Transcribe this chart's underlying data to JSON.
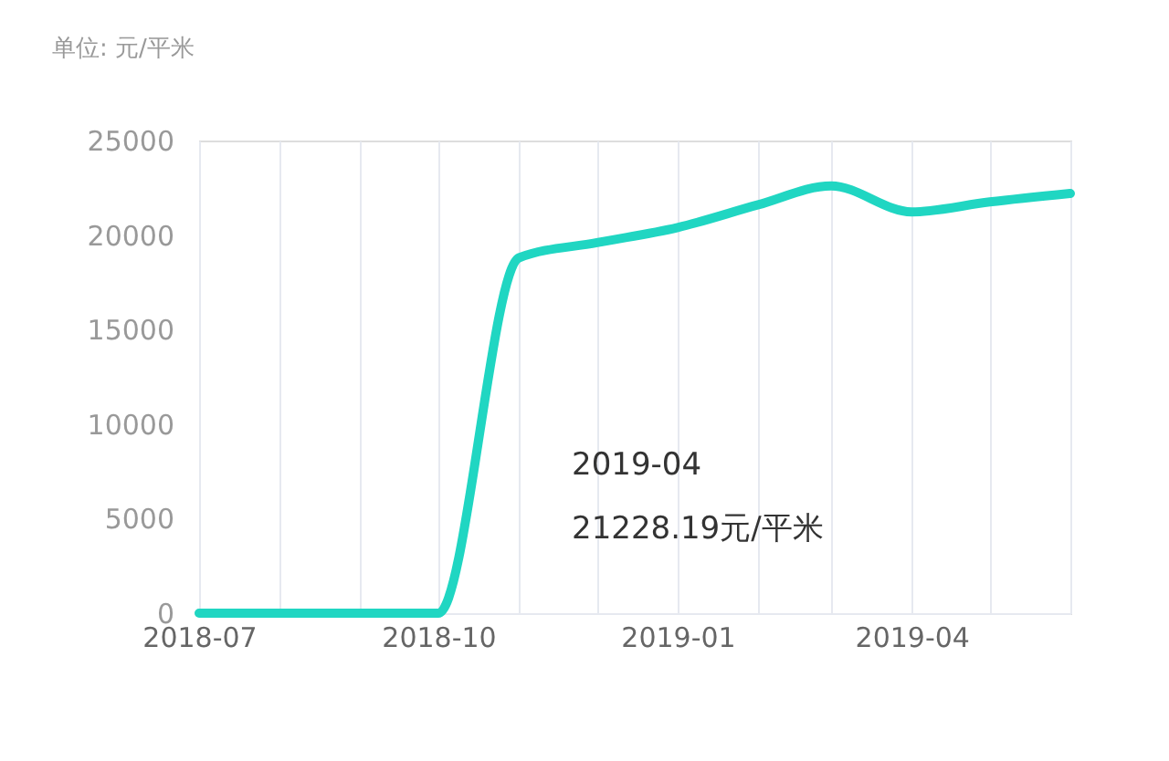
{
  "chart_data": {
    "type": "line",
    "ylabel": "单位: 元/平米",
    "x": [
      "2018-07",
      "2018-08",
      "2018-09",
      "2018-10",
      "2018-11",
      "2018-12",
      "2019-01",
      "2019-02",
      "2019-03",
      "2019-04",
      "2019-05",
      "2019-06"
    ],
    "series": [
      {
        "color": "#20d6c2",
        "values": [
          0,
          0,
          0,
          0,
          18800,
          19600,
          20400,
          21600,
          22600,
          21228.19,
          21750,
          22200
        ]
      }
    ],
    "xlim": [
      "2018-07",
      "2019-06"
    ],
    "xticks": [
      "2018-07",
      {
        "value": "2018-08",
        "label": null
      },
      {
        "value": "2018-09",
        "label": null
      },
      "2018-10",
      {
        "value": "2018-11",
        "label": null
      },
      {
        "value": "2018-12",
        "label": null
      },
      "2019-01",
      {
        "value": "2019-02",
        "label": null
      },
      {
        "value": "2019-03",
        "label": null
      },
      "2019-04",
      {
        "value": "2019-05",
        "label": null
      },
      {
        "value": "2019-06",
        "label": null
      }
    ],
    "ylim": [
      0,
      25000
    ],
    "yticks": [
      0,
      5000,
      10000,
      15000,
      20000,
      25000
    ],
    "grid": "x",
    "legend": false,
    "marker": "none",
    "line_style": "solid",
    "annotations": [
      "2019-04",
      "21228.19元/平米"
    ]
  }
}
